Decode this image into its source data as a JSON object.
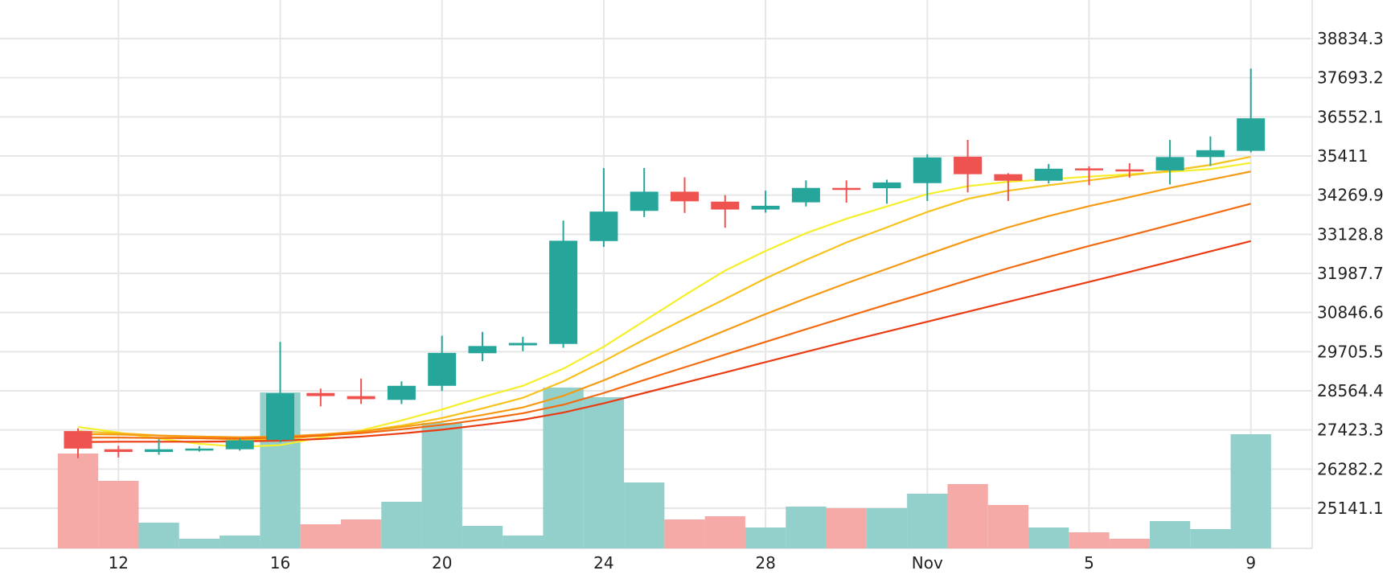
{
  "chart_data": {
    "type": "candlestick",
    "title": "",
    "xlabel": "",
    "ylabel": "",
    "grid": true,
    "dates": [
      "Oct 11",
      "Oct 12",
      "Oct 13",
      "Oct 14",
      "Oct 15",
      "Oct 16",
      "Oct 17",
      "Oct 18",
      "Oct 19",
      "Oct 20",
      "Oct 21",
      "Oct 22",
      "Oct 23",
      "Oct 24",
      "Oct 25",
      "Oct 26",
      "Oct 27",
      "Oct 28",
      "Oct 29",
      "Oct 30",
      "Oct 31",
      "Nov 1",
      "Nov 2",
      "Nov 3",
      "Nov 4",
      "Nov 5",
      "Nov 6",
      "Nov 7",
      "Nov 8",
      "Nov 9"
    ],
    "x_tick_labels": [
      {
        "index": 1,
        "label": "12"
      },
      {
        "index": 5,
        "label": "16"
      },
      {
        "index": 9,
        "label": "20"
      },
      {
        "index": 13,
        "label": "24"
      },
      {
        "index": 17,
        "label": "28"
      },
      {
        "index": 21,
        "label": "Nov"
      },
      {
        "index": 25,
        "label": "5"
      },
      {
        "index": 29,
        "label": "9"
      }
    ],
    "y_ticks": [
      "38834.3",
      "37693.2",
      "36552.1",
      "35411",
      "34269.9",
      "33128.8",
      "31987.7",
      "30846.6",
      "29705.5",
      "28564.4",
      "27423.3",
      "26282.2",
      "25141.1"
    ],
    "ylim": [
      24100,
      39800
    ],
    "ohlc": [
      {
        "open": 27390,
        "high": 27470,
        "low": 26600,
        "close": 26880
      },
      {
        "open": 26860,
        "high": 26960,
        "low": 26620,
        "close": 26780
      },
      {
        "open": 26780,
        "high": 27150,
        "low": 26700,
        "close": 26860
      },
      {
        "open": 26870,
        "high": 26950,
        "low": 26790,
        "close": 26880
      },
      {
        "open": 26860,
        "high": 27170,
        "low": 26820,
        "close": 27120
      },
      {
        "open": 27130,
        "high": 29990,
        "low": 27060,
        "close": 28490
      },
      {
        "open": 28500,
        "high": 28630,
        "low": 28110,
        "close": 28410
      },
      {
        "open": 28410,
        "high": 28920,
        "low": 28180,
        "close": 28320
      },
      {
        "open": 28300,
        "high": 28840,
        "low": 28180,
        "close": 28710
      },
      {
        "open": 28710,
        "high": 30170,
        "low": 28560,
        "close": 29670
      },
      {
        "open": 29660,
        "high": 30280,
        "low": 29430,
        "close": 29870
      },
      {
        "open": 29890,
        "high": 30140,
        "low": 29720,
        "close": 29960
      },
      {
        "open": 29930,
        "high": 33530,
        "low": 29820,
        "close": 32940
      },
      {
        "open": 32930,
        "high": 35060,
        "low": 32760,
        "close": 33790
      },
      {
        "open": 33810,
        "high": 35060,
        "low": 33630,
        "close": 34370
      },
      {
        "open": 34370,
        "high": 34790,
        "low": 33750,
        "close": 34090
      },
      {
        "open": 34080,
        "high": 34270,
        "low": 33320,
        "close": 33850
      },
      {
        "open": 33850,
        "high": 34400,
        "low": 33760,
        "close": 33960
      },
      {
        "open": 34060,
        "high": 34700,
        "low": 33940,
        "close": 34480
      },
      {
        "open": 34480,
        "high": 34700,
        "low": 34050,
        "close": 34440
      },
      {
        "open": 34470,
        "high": 34720,
        "low": 34020,
        "close": 34640
      },
      {
        "open": 34620,
        "high": 35460,
        "low": 34100,
        "close": 35370
      },
      {
        "open": 35390,
        "high": 35880,
        "low": 34350,
        "close": 34880
      },
      {
        "open": 34880,
        "high": 34910,
        "low": 34100,
        "close": 34690
      },
      {
        "open": 34690,
        "high": 35180,
        "low": 34610,
        "close": 35040
      },
      {
        "open": 35050,
        "high": 35110,
        "low": 34560,
        "close": 35020
      },
      {
        "open": 35020,
        "high": 35200,
        "low": 34780,
        "close": 34990
      },
      {
        "open": 34990,
        "high": 35880,
        "low": 34580,
        "close": 35380
      },
      {
        "open": 35380,
        "high": 35980,
        "low": 35120,
        "close": 35580
      },
      {
        "open": 35560,
        "high": 37960,
        "low": 35520,
        "close": 36510
      }
    ],
    "volume": [
      0.59,
      0.42,
      0.16,
      0.06,
      0.08,
      0.97,
      0.15,
      0.18,
      0.29,
      0.78,
      0.14,
      0.08,
      1.0,
      0.94,
      0.41,
      0.18,
      0.2,
      0.13,
      0.26,
      0.25,
      0.25,
      0.34,
      0.4,
      0.27,
      0.13,
      0.1,
      0.06,
      0.17,
      0.12,
      0.71
    ],
    "moving_averages": [
      {
        "color": "#f5ef2a",
        "values": [
          27510,
          27350,
          27170,
          27020,
          26930,
          26980,
          27200,
          27410,
          27700,
          28020,
          28380,
          28710,
          29210,
          29850,
          30600,
          31350,
          32070,
          32640,
          33160,
          33580,
          33940,
          34300,
          34530,
          34660,
          34730,
          34810,
          34880,
          34950,
          35030,
          35210
        ]
      },
      {
        "color": "#f7c21c",
        "values": [
          27380,
          27330,
          27260,
          27190,
          27130,
          27150,
          27250,
          27380,
          27550,
          27770,
          28050,
          28360,
          28840,
          29430,
          30060,
          30660,
          31240,
          31840,
          32380,
          32890,
          33330,
          33780,
          34160,
          34400,
          34560,
          34700,
          34850,
          34980,
          35150,
          35390
        ]
      },
      {
        "color": "#f59a12",
        "values": [
          27300,
          27290,
          27260,
          27230,
          27210,
          27230,
          27290,
          27380,
          27510,
          27660,
          27860,
          28080,
          28420,
          28870,
          29360,
          29840,
          30320,
          30800,
          31260,
          31700,
          32120,
          32540,
          32950,
          33330,
          33660,
          33950,
          34210,
          34480,
          34720,
          34960
        ]
      },
      {
        "color": "#f26b10",
        "values": [
          27200,
          27200,
          27190,
          27180,
          27170,
          27200,
          27260,
          27330,
          27440,
          27570,
          27730,
          27910,
          28160,
          28500,
          28880,
          29250,
          29620,
          29990,
          30360,
          30720,
          31080,
          31430,
          31790,
          32140,
          32470,
          32790,
          33090,
          33400,
          33710,
          34020
        ]
      },
      {
        "color": "#eb3b12",
        "values": [
          27070,
          27080,
          27080,
          27080,
          27090,
          27110,
          27160,
          27230,
          27320,
          27430,
          27570,
          27720,
          27930,
          28200,
          28500,
          28800,
          29100,
          29400,
          29700,
          30000,
          30290,
          30580,
          30870,
          31160,
          31450,
          31740,
          32030,
          32330,
          32630,
          32930
        ]
      }
    ],
    "colors": {
      "up": "#26a69a",
      "down": "#ef5350",
      "up_volume": "#93cfcb",
      "down_volume": "#f5aaa7",
      "grid": "#e6e6e6",
      "text": "#222222"
    }
  }
}
